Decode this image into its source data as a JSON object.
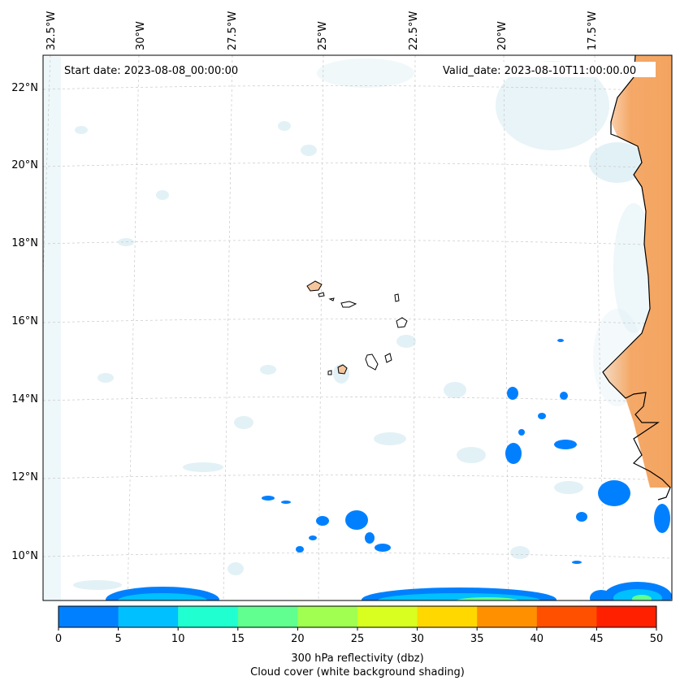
{
  "map": {
    "start_date_label": "Start date: 2023-08-08_00:00:00",
    "valid_date_label": "Valid_date: 2023-08-10T11:00:00.00",
    "lon_labels": [
      "32.5°W",
      "30°W",
      "27.5°W",
      "25°W",
      "22.5°W",
      "20°W",
      "17.5°W"
    ],
    "lat_labels": [
      "22°N",
      "20°N",
      "18°N",
      "16°N",
      "14°N",
      "12°N",
      "10°N"
    ],
    "colors": {
      "land": "#f4a460",
      "cloud": "#d6ebf2",
      "coast": "#000000",
      "grid": "#c8c8c8"
    }
  },
  "colorbar": {
    "ticks": [
      "0",
      "5",
      "10",
      "15",
      "20",
      "25",
      "30",
      "35",
      "40",
      "45",
      "50"
    ],
    "colors": [
      "#0080ff",
      "#00c0ff",
      "#20ffd0",
      "#60ff90",
      "#a0ff50",
      "#d8ff20",
      "#ffd800",
      "#ff9000",
      "#ff5000",
      "#ff2000"
    ],
    "label_line1": "300 hPa reflectivity (dbz)",
    "label_line2": "Cloud cover (white background shading)"
  }
}
